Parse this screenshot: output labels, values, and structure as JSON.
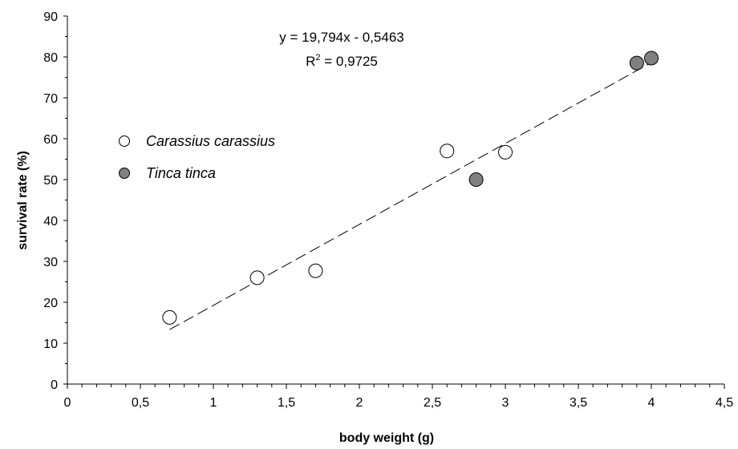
{
  "chart_data": {
    "type": "scatter",
    "xlabel": "body weight (g)",
    "ylabel": "survival rate (%)",
    "xlim": [
      0,
      4.5
    ],
    "ylim": [
      0,
      90
    ],
    "x_ticks": [
      "0",
      "0,5",
      "1",
      "1,5",
      "2",
      "2,5",
      "3",
      "3,5",
      "4",
      "4,5"
    ],
    "y_ticks": [
      "0",
      "10",
      "20",
      "30",
      "40",
      "50",
      "60",
      "70",
      "80",
      "90"
    ],
    "grid": false,
    "legend_position": "left",
    "series": [
      {
        "name": "Carassius carassius",
        "marker": "open-circle",
        "color": "#ffffff",
        "points": [
          {
            "x": 0.7,
            "y": 16.3
          },
          {
            "x": 1.3,
            "y": 26.0
          },
          {
            "x": 1.7,
            "y": 27.7
          },
          {
            "x": 2.6,
            "y": 57.0
          },
          {
            "x": 3.0,
            "y": 56.7
          }
        ]
      },
      {
        "name": "Tinca tinca",
        "marker": "filled-circle",
        "color": "#808080",
        "points": [
          {
            "x": 2.8,
            "y": 50.0
          },
          {
            "x": 3.9,
            "y": 78.5
          },
          {
            "x": 4.0,
            "y": 79.7
          }
        ]
      }
    ],
    "trendline": {
      "style": "dashed",
      "slope": 19.794,
      "intercept": -0.5463,
      "x_range": [
        0.7,
        4.0
      ]
    },
    "annotations": {
      "equation": "y = 19,794x - 0,5463",
      "r2_prefix": "R",
      "r2_superscript": "2",
      "r2_value": " = 0,9725"
    }
  }
}
